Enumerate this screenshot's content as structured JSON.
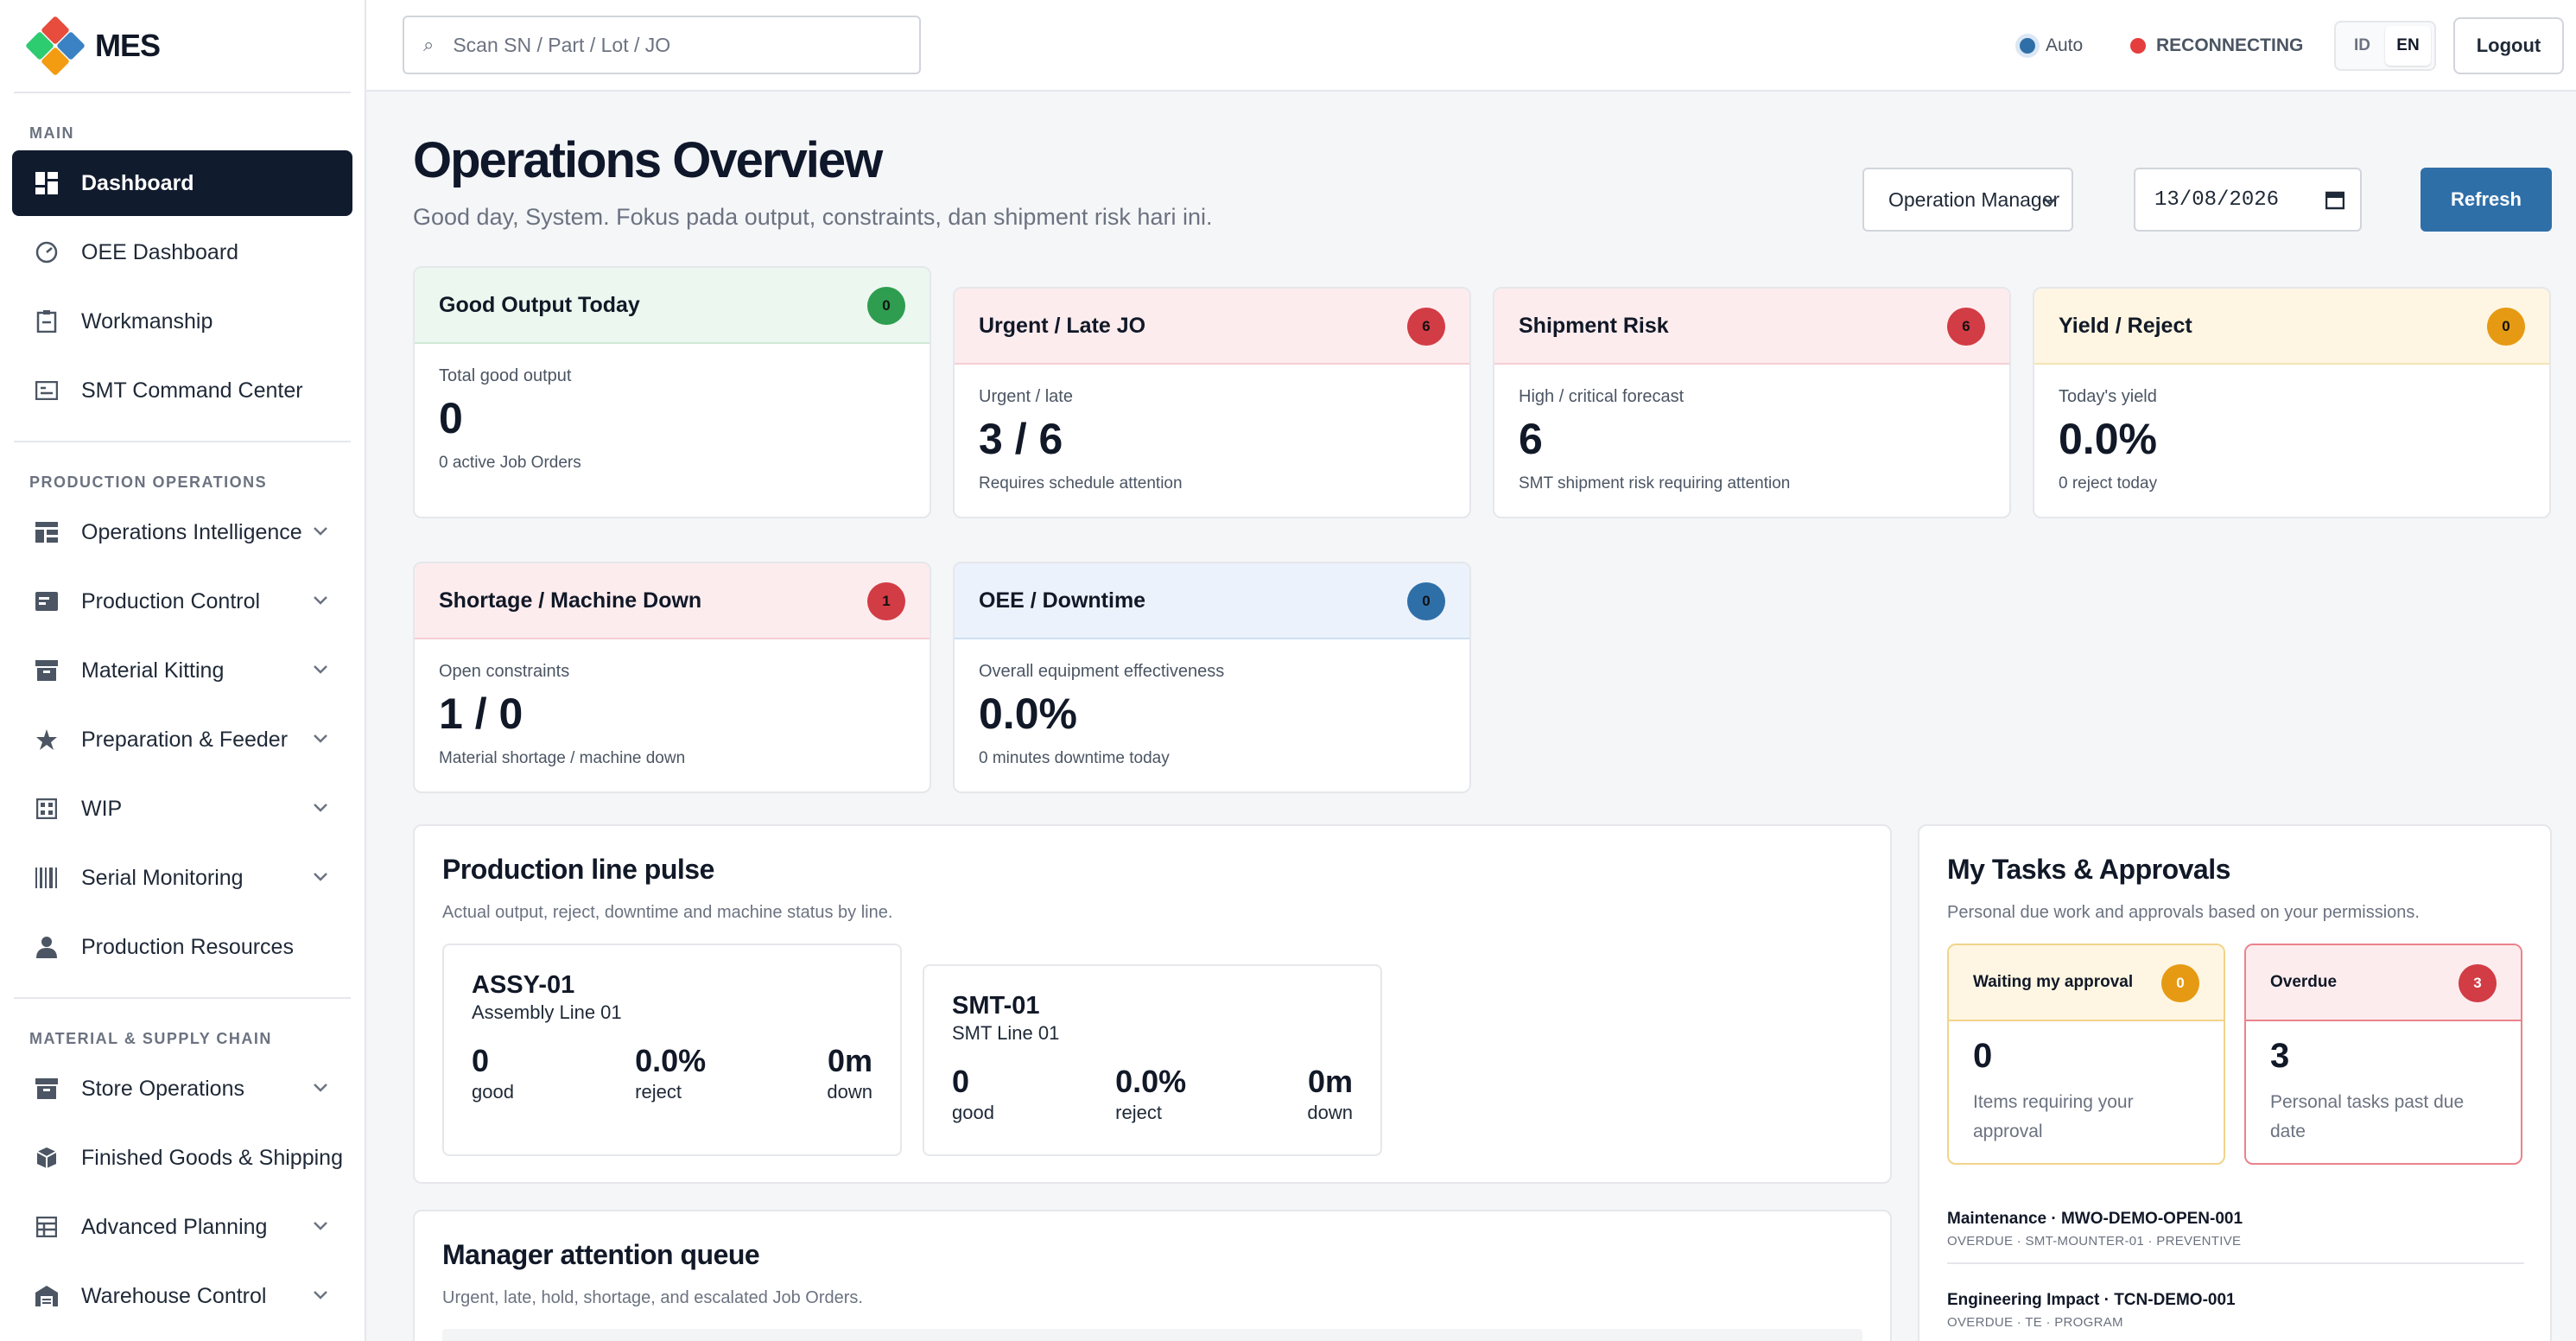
{
  "brand": {
    "name": "MES"
  },
  "search": {
    "placeholder": "Scan SN / Part / Lot / JO"
  },
  "topbar": {
    "auto_label": "Auto",
    "connection_status": "RECONNECTING",
    "lang_id": "ID",
    "lang_en": "EN",
    "logout_label": "Logout"
  },
  "sidebar": {
    "section_main": "MAIN",
    "main_items": [
      {
        "label": "Dashboard",
        "icon": "dashboard-icon"
      },
      {
        "label": "OEE Dashboard",
        "icon": "gauge-icon"
      },
      {
        "label": "Workmanship",
        "icon": "clipboard-icon"
      },
      {
        "label": "SMT Command Center",
        "icon": "monitor-icon"
      }
    ],
    "section_production": "PRODUCTION OPERATIONS",
    "production_items": [
      {
        "label": "Operations Intelligence",
        "icon": "layout-icon"
      },
      {
        "label": "Production Control",
        "icon": "card-icon"
      },
      {
        "label": "Material Kitting",
        "icon": "archive-icon"
      },
      {
        "label": "Preparation & Feeder",
        "icon": "star-icon"
      },
      {
        "label": "WIP",
        "icon": "grid-icon"
      },
      {
        "label": "Serial Monitoring",
        "icon": "barcode-icon"
      },
      {
        "label": "Production Resources",
        "icon": "user-icon"
      }
    ],
    "section_supply": "MATERIAL & SUPPLY CHAIN",
    "supply_items": [
      {
        "label": "Store Operations",
        "icon": "store-icon"
      },
      {
        "label": "Finished Goods & Shipping",
        "icon": "box-icon"
      },
      {
        "label": "Advanced Planning",
        "icon": "table-icon"
      },
      {
        "label": "Warehouse Control",
        "icon": "warehouse-icon"
      }
    ]
  },
  "header": {
    "title": "Operations Overview",
    "subtitle": "Good day, System. Fokus pada output, constraints, dan shipment risk hari ini.",
    "role": "Operation Manager",
    "date": "13/08/2026",
    "refresh_label": "Refresh"
  },
  "kpis": [
    {
      "title": "Good Output Today",
      "badge": "0",
      "label": "Total good output",
      "value": "0",
      "note": "0 active Job Orders",
      "tone": "green"
    },
    {
      "title": "Urgent / Late JO",
      "badge": "6",
      "label": "Urgent / late",
      "value": "3 / 6",
      "note": "Requires schedule attention",
      "tone": "red"
    },
    {
      "title": "Shipment Risk",
      "badge": "6",
      "label": "High / critical forecast",
      "value": "6",
      "note": "SMT shipment risk requiring attention",
      "tone": "red"
    },
    {
      "title": "Yield / Reject",
      "badge": "0",
      "label": "Today's yield",
      "value": "0.0%",
      "note": "0 reject today",
      "tone": "yellow"
    },
    {
      "title": "Shortage / Machine Down",
      "badge": "1",
      "label": "Open constraints",
      "value": "1 / 0",
      "note": "Material shortage / machine down",
      "tone": "red"
    },
    {
      "title": "OEE / Downtime",
      "badge": "0",
      "label": "Overall equipment effectiveness",
      "value": "0.0%",
      "note": "0 minutes downtime today",
      "tone": "blue"
    }
  ],
  "colors": {
    "green_badge": "#2e9d4f",
    "red_badge": "#d23c45",
    "yellow_badge": "#e69a13",
    "blue_badge": "#2f6fa8",
    "accent": "#2f6fa8",
    "active_nav": "#111b2e"
  },
  "pulse": {
    "title": "Production line pulse",
    "subtitle": "Actual output, reject, downtime and machine status by line.",
    "lines": [
      {
        "code": "ASSY-01",
        "name": "Assembly Line 01",
        "good": "0",
        "good_label": "good",
        "reject": "0.0%",
        "reject_label": "reject",
        "down": "0m",
        "down_label": "down"
      },
      {
        "code": "SMT-01",
        "name": "SMT Line 01",
        "good": "0",
        "good_label": "good",
        "reject": "0.0%",
        "reject_label": "reject",
        "down": "0m",
        "down_label": "down"
      }
    ]
  },
  "queue": {
    "title": "Manager attention queue",
    "subtitle": "Urgent, late, hold, shortage, and escalated Job Orders."
  },
  "tasks": {
    "title": "My Tasks & Approvals",
    "subtitle": "Personal due work and approvals based on your permissions.",
    "waiting": {
      "label": "Waiting my approval",
      "badge": "0",
      "value": "0",
      "desc": "Items requiring your approval"
    },
    "overdue": {
      "label": "Overdue",
      "badge": "3",
      "value": "3",
      "desc": "Personal tasks past due date"
    },
    "items": [
      {
        "title": "Maintenance · MWO-DEMO-OPEN-001",
        "meta": "OVERDUE · SMT-MOUNTER-01 · PREVENTIVE"
      },
      {
        "title": "Engineering Impact · TCN-DEMO-001",
        "meta": "OVERDUE · TE · PROGRAM"
      }
    ]
  }
}
